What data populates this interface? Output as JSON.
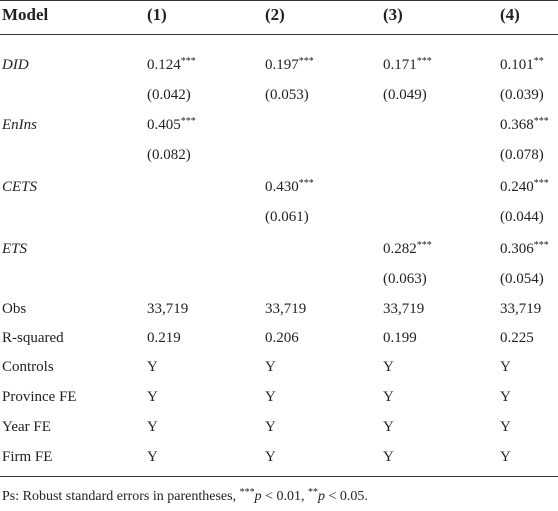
{
  "table": {
    "header": [
      "Model",
      "(1)",
      "(2)",
      "(3)",
      "(4)"
    ],
    "rows": [
      {
        "label": "DID",
        "italic": true,
        "cells": [
          {
            "text": "0.124",
            "sup": "***"
          },
          {
            "text": "0.197",
            "sup": "***"
          },
          {
            "text": "0.171",
            "sup": "***"
          },
          {
            "text": "0.101",
            "sup": "**"
          }
        ]
      },
      {
        "label": null,
        "cells": [
          "(0.042)",
          "(0.053)",
          "(0.049)",
          "(0.039)"
        ]
      },
      {
        "label": "EnIns",
        "italic": true,
        "cells": [
          {
            "text": "0.405",
            "sup": "***"
          },
          null,
          null,
          {
            "text": "0.368",
            "sup": "***"
          }
        ]
      },
      {
        "label": null,
        "cells": [
          "(0.082)",
          null,
          null,
          "(0.078)"
        ]
      },
      {
        "label": "CETS",
        "italic": true,
        "cells": [
          null,
          {
            "text": "0.430",
            "sup": "***"
          },
          null,
          {
            "text": "0.240",
            "sup": "***"
          }
        ]
      },
      {
        "label": null,
        "cells": [
          null,
          "(0.061)",
          null,
          "(0.044)"
        ]
      },
      {
        "label": "ETS",
        "italic": true,
        "cells": [
          null,
          null,
          {
            "text": "0.282",
            "sup": "***"
          },
          {
            "text": "0.306",
            "sup": "***"
          }
        ]
      },
      {
        "label": null,
        "cells": [
          null,
          null,
          "(0.063)",
          "(0.054)"
        ]
      },
      {
        "label": "Obs",
        "cells": [
          "33,719",
          "33,719",
          "33,719",
          "33,719"
        ]
      },
      {
        "label": "R-squared",
        "cells": [
          "0.219",
          "0.206",
          "0.199",
          "0.225"
        ]
      },
      {
        "label": "Controls",
        "cells": [
          "Y",
          "Y",
          "Y",
          "Y"
        ]
      },
      {
        "label": "Province FE",
        "cells": [
          "Y",
          "Y",
          "Y",
          "Y"
        ]
      },
      {
        "label": "Year FE",
        "cells": [
          "Y",
          "Y",
          "Y",
          "Y"
        ]
      },
      {
        "label": "Firm FE",
        "cells": [
          "Y",
          "Y",
          "Y",
          "Y"
        ]
      }
    ]
  },
  "note": [
    {
      "text": "Ps: Robust standard errors in parentheses, "
    },
    {
      "text": "***",
      "sup": true
    },
    {
      "text": "p",
      "italic": true
    },
    {
      "text": " < 0.01, "
    },
    {
      "text": "**",
      "sup": true
    },
    {
      "text": "p",
      "italic": true
    },
    {
      "text": " < 0.05."
    }
  ]
}
